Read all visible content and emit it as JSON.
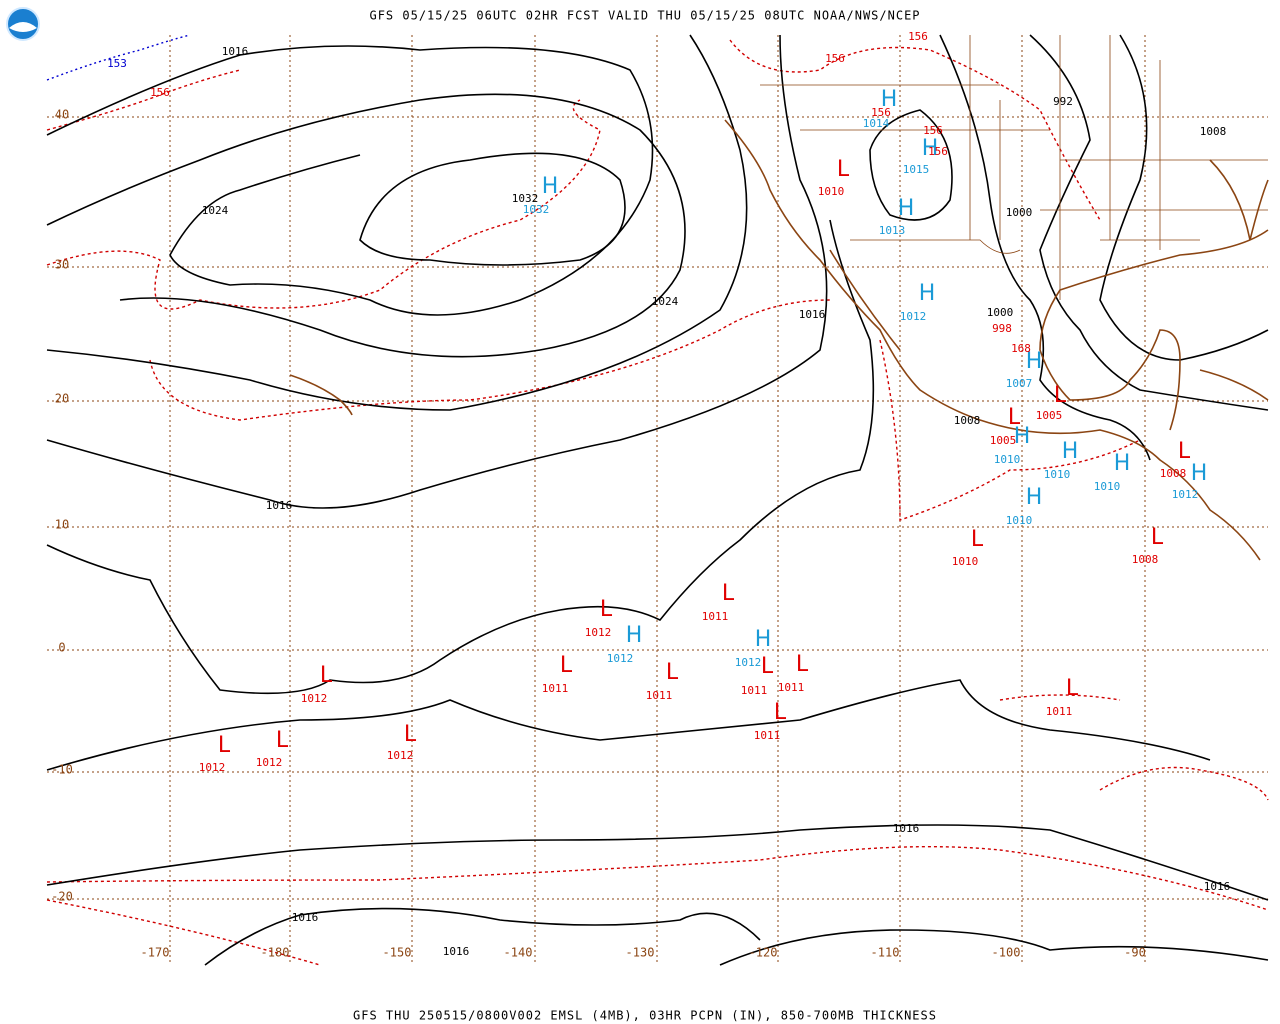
{
  "header": "GFS 05/15/25 06UTC 02HR FCST VALID THU 05/15/25 08UTC NOAA/NWS/NCEP",
  "footer": "GFS THU 250515/0800V002 EMSL (4MB), 03HR PCPN (IN), 850-700MB THICKNESS",
  "latitudes": [
    40,
    30,
    20,
    10,
    0,
    -10,
    -20
  ],
  "longitudes": [
    -170,
    -180,
    -150,
    -140,
    -130,
    -120,
    -110,
    -100,
    -90
  ],
  "highs": [
    {
      "symbol": "H",
      "pressure": 1032
    },
    {
      "symbol": "H",
      "pressure": 1014
    },
    {
      "symbol": "H",
      "pressure": 1015
    },
    {
      "symbol": "H",
      "pressure": 1013
    },
    {
      "symbol": "H",
      "pressure": 1012
    },
    {
      "symbol": "H",
      "pressure": 1007
    },
    {
      "symbol": "H",
      "pressure": 1010
    },
    {
      "symbol": "H",
      "pressure": 1010
    },
    {
      "symbol": "H",
      "pressure": 1010
    },
    {
      "symbol": "H",
      "pressure": 1012
    },
    {
      "symbol": "H",
      "pressure": 1010
    },
    {
      "symbol": "H",
      "pressure": 1012
    },
    {
      "symbol": "H",
      "pressure": 1012
    }
  ],
  "lows": [
    {
      "symbol": "L",
      "pressure": 1010
    },
    {
      "symbol": "L",
      "pressure": 1005
    },
    {
      "symbol": "L",
      "pressure": 1005
    },
    {
      "symbol": "L",
      "pressure": 1008
    },
    {
      "symbol": "L",
      "pressure": 1010
    },
    {
      "symbol": "L",
      "pressure": 1008
    },
    {
      "symbol": "L",
      "pressure": 1011
    },
    {
      "symbol": "L",
      "pressure": 1012
    },
    {
      "symbol": "L",
      "pressure": 1011
    },
    {
      "symbol": "L",
      "pressure": 1011
    },
    {
      "symbol": "L",
      "pressure": 1011
    },
    {
      "symbol": "L",
      "pressure": 1011
    },
    {
      "symbol": "L",
      "pressure": 1011
    },
    {
      "symbol": "L",
      "pressure": 1011
    },
    {
      "symbol": "L",
      "pressure": 1012
    },
    {
      "symbol": "L",
      "pressure": 1012
    },
    {
      "symbol": "L",
      "pressure": 1012
    },
    {
      "symbol": "L",
      "pressure": 1012
    }
  ],
  "isobar_labels": [
    1016,
    1024,
    1032,
    1024,
    1016,
    992,
    1008,
    1000,
    1000,
    1008,
    1016,
    1016,
    1016,
    1016,
    1016
  ],
  "thickness_labels": [
    156,
    156,
    156,
    156,
    156,
    156,
    998,
    168
  ],
  "precip_labels": [
    153
  ]
}
